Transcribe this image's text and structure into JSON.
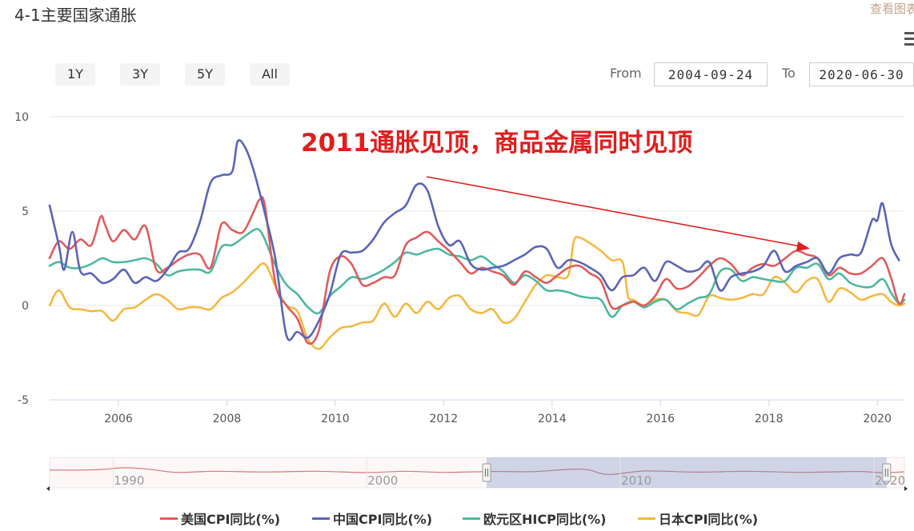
{
  "header": {
    "title": "4-1主要国家通胀",
    "view_link": "查看图表"
  },
  "range_selector": {
    "buttons": [
      "1Y",
      "3Y",
      "5Y",
      "All"
    ],
    "from_label": "From",
    "from_value": "2004-09-24",
    "to_label": "To",
    "to_value": "2020-06-30"
  },
  "icons": {
    "menu": "hamburger-menu-icon",
    "handle": "drag-handle-icon"
  },
  "colors": {
    "us": "#e05c5c",
    "cn": "#5b64b8",
    "eu": "#4db8a0",
    "jp": "#f5b942",
    "annotation": "#e01e1e"
  },
  "chart_data": {
    "type": "line",
    "annotation": "2011通胀见顶，商品金属同时见顶",
    "ylim": [
      -5,
      10
    ],
    "yticks": [
      "-5",
      "0",
      "5",
      "10"
    ],
    "xlim": [
      2004.73,
      2020.5
    ],
    "xticks": [
      "2006",
      "2008",
      "2010",
      "2012",
      "2014",
      "2016",
      "2018",
      "2020"
    ],
    "navigator_ticks": [
      "1990",
      "2000",
      "2010",
      "2020"
    ],
    "series": [
      {
        "name": "美国CPI同比(%)",
        "key": "us",
        "x": [
          2004.73,
          2004.9,
          2005.1,
          2005.3,
          2005.5,
          2005.67,
          2005.75,
          2005.9,
          2006.1,
          2006.3,
          2006.5,
          2006.7,
          2006.9,
          2007.1,
          2007.3,
          2007.5,
          2007.7,
          2007.9,
          2008.1,
          2008.3,
          2008.5,
          2008.6,
          2008.7,
          2008.9,
          2009.1,
          2009.3,
          2009.5,
          2009.7,
          2009.9,
          2010.1,
          2010.3,
          2010.5,
          2010.7,
          2010.9,
          2011.1,
          2011.3,
          2011.5,
          2011.7,
          2011.9,
          2012.1,
          2012.3,
          2012.5,
          2012.7,
          2012.9,
          2013.1,
          2013.3,
          2013.5,
          2013.7,
          2013.9,
          2014.1,
          2014.3,
          2014.5,
          2014.7,
          2014.9,
          2015.1,
          2015.3,
          2015.5,
          2015.7,
          2015.9,
          2016.1,
          2016.3,
          2016.5,
          2016.7,
          2016.9,
          2017.1,
          2017.3,
          2017.5,
          2017.7,
          2017.9,
          2018.1,
          2018.3,
          2018.5,
          2018.7,
          2018.9,
          2019.1,
          2019.3,
          2019.5,
          2019.7,
          2019.9,
          2020.1,
          2020.25,
          2020.4,
          2020.5
        ],
        "y": [
          2.5,
          3.4,
          3.0,
          3.5,
          3.2,
          4.7,
          4.3,
          3.4,
          4.0,
          3.5,
          4.2,
          1.9,
          2.0,
          2.4,
          2.7,
          2.7,
          2.0,
          4.3,
          4.0,
          3.9,
          5.0,
          5.6,
          5.3,
          1.1,
          0.0,
          -0.7,
          -2.0,
          -1.3,
          1.8,
          2.6,
          2.2,
          1.1,
          1.2,
          1.5,
          1.6,
          3.2,
          3.6,
          3.9,
          3.4,
          2.9,
          2.3,
          1.7,
          2.0,
          1.8,
          1.6,
          1.1,
          1.8,
          1.5,
          1.2,
          1.6,
          2.0,
          2.1,
          1.7,
          1.3,
          -0.1,
          0.0,
          0.2,
          0.0,
          0.5,
          1.4,
          0.9,
          1.0,
          1.5,
          2.1,
          2.5,
          2.2,
          1.6,
          2.0,
          2.2,
          2.1,
          2.5,
          2.9,
          2.7,
          2.5,
          1.6,
          2.0,
          1.7,
          1.7,
          2.1,
          2.5,
          1.5,
          0.1,
          0.6
        ]
      },
      {
        "name": "中国CPI同比(%)",
        "key": "cn",
        "x": [
          2004.73,
          2004.9,
          2005.0,
          2005.15,
          2005.3,
          2005.5,
          2005.7,
          2005.9,
          2006.1,
          2006.3,
          2006.5,
          2006.7,
          2006.9,
          2007.1,
          2007.3,
          2007.5,
          2007.7,
          2007.9,
          2008.1,
          2008.2,
          2008.35,
          2008.5,
          2008.7,
          2008.9,
          2009.1,
          2009.3,
          2009.5,
          2009.7,
          2009.9,
          2010.1,
          2010.3,
          2010.5,
          2010.7,
          2010.9,
          2011.1,
          2011.3,
          2011.5,
          2011.7,
          2011.9,
          2012.1,
          2012.3,
          2012.5,
          2012.7,
          2012.9,
          2013.1,
          2013.3,
          2013.5,
          2013.7,
          2013.9,
          2014.1,
          2014.3,
          2014.5,
          2014.7,
          2014.9,
          2015.1,
          2015.3,
          2015.5,
          2015.7,
          2015.9,
          2016.1,
          2016.3,
          2016.5,
          2016.7,
          2016.9,
          2017.1,
          2017.3,
          2017.5,
          2017.7,
          2017.9,
          2018.1,
          2018.3,
          2018.5,
          2018.7,
          2018.9,
          2019.1,
          2019.3,
          2019.5,
          2019.7,
          2019.9,
          2020.0,
          2020.1,
          2020.25,
          2020.4
        ],
        "y": [
          5.3,
          3.2,
          1.9,
          3.9,
          1.8,
          1.7,
          1.2,
          1.4,
          1.9,
          1.2,
          1.5,
          1.3,
          1.9,
          2.8,
          3.0,
          4.4,
          6.5,
          6.9,
          7.1,
          8.7,
          8.3,
          7.1,
          4.9,
          2.4,
          -1.6,
          -1.4,
          -1.7,
          -0.8,
          0.6,
          2.7,
          2.8,
          2.9,
          3.5,
          4.4,
          4.9,
          5.3,
          6.4,
          6.1,
          4.2,
          3.2,
          3.4,
          2.2,
          1.9,
          2.0,
          2.1,
          2.4,
          2.7,
          3.1,
          3.0,
          2.0,
          2.4,
          2.3,
          2.0,
          1.6,
          0.8,
          1.5,
          1.6,
          2.0,
          1.3,
          2.3,
          2.1,
          1.8,
          1.9,
          2.3,
          0.8,
          1.5,
          1.7,
          1.8,
          2.1,
          2.9,
          1.8,
          2.1,
          2.3,
          2.5,
          1.7,
          2.5,
          2.7,
          2.8,
          4.5,
          4.5,
          5.4,
          3.3,
          2.4
        ]
      },
      {
        "name": "欧元区HICP同比(%)",
        "key": "eu",
        "x": [
          2004.73,
          2004.9,
          2005.1,
          2005.3,
          2005.5,
          2005.7,
          2005.9,
          2006.1,
          2006.3,
          2006.5,
          2006.7,
          2006.9,
          2007.1,
          2007.3,
          2007.5,
          2007.7,
          2007.9,
          2008.1,
          2008.3,
          2008.5,
          2008.6,
          2008.7,
          2008.9,
          2009.1,
          2009.3,
          2009.5,
          2009.7,
          2009.9,
          2010.1,
          2010.3,
          2010.5,
          2010.7,
          2010.9,
          2011.1,
          2011.3,
          2011.5,
          2011.7,
          2011.9,
          2012.1,
          2012.3,
          2012.5,
          2012.7,
          2012.9,
          2013.1,
          2013.3,
          2013.5,
          2013.7,
          2013.9,
          2014.1,
          2014.3,
          2014.5,
          2014.7,
          2014.9,
          2015.1,
          2015.3,
          2015.5,
          2015.7,
          2015.9,
          2016.1,
          2016.3,
          2016.5,
          2016.7,
          2016.9,
          2017.1,
          2017.3,
          2017.5,
          2017.7,
          2017.9,
          2018.1,
          2018.3,
          2018.5,
          2018.7,
          2018.9,
          2019.1,
          2019.3,
          2019.5,
          2019.7,
          2019.9,
          2020.1,
          2020.25,
          2020.4,
          2020.5
        ],
        "y": [
          2.1,
          2.3,
          2.0,
          2.0,
          2.2,
          2.5,
          2.3,
          2.3,
          2.4,
          2.5,
          2.2,
          1.6,
          1.8,
          1.9,
          1.9,
          1.8,
          3.1,
          3.2,
          3.6,
          4.0,
          4.0,
          3.5,
          2.1,
          1.1,
          0.6,
          -0.1,
          -0.4,
          0.5,
          1.0,
          1.5,
          1.4,
          1.6,
          1.9,
          2.3,
          2.8,
          2.7,
          2.9,
          3.0,
          2.7,
          2.6,
          2.4,
          2.6,
          2.2,
          1.8,
          1.2,
          1.6,
          1.3,
          0.8,
          0.8,
          0.7,
          0.5,
          0.4,
          0.3,
          -0.6,
          0.0,
          0.2,
          -0.1,
          0.2,
          0.3,
          -0.2,
          0.1,
          0.4,
          0.6,
          1.8,
          1.9,
          1.3,
          1.5,
          1.4,
          1.3,
          1.3,
          2.0,
          2.0,
          2.2,
          1.4,
          1.7,
          1.2,
          1.0,
          1.0,
          1.4,
          0.7,
          0.1,
          0.3
        ]
      },
      {
        "name": "日本CPI同比(%)",
        "key": "jp",
        "x": [
          2004.73,
          2004.9,
          2005.1,
          2005.3,
          2005.5,
          2005.7,
          2005.9,
          2006.1,
          2006.3,
          2006.5,
          2006.7,
          2006.9,
          2007.1,
          2007.3,
          2007.5,
          2007.7,
          2007.9,
          2008.1,
          2008.3,
          2008.5,
          2008.7,
          2008.9,
          2009.1,
          2009.3,
          2009.5,
          2009.7,
          2009.9,
          2010.1,
          2010.3,
          2010.5,
          2010.7,
          2010.9,
          2011.1,
          2011.3,
          2011.5,
          2011.7,
          2011.9,
          2012.1,
          2012.3,
          2012.5,
          2012.7,
          2012.9,
          2013.1,
          2013.3,
          2013.5,
          2013.7,
          2013.9,
          2014.1,
          2014.3,
          2014.4,
          2014.5,
          2014.7,
          2014.9,
          2015.1,
          2015.3,
          2015.4,
          2015.5,
          2015.7,
          2015.9,
          2016.1,
          2016.3,
          2016.5,
          2016.7,
          2016.9,
          2017.1,
          2017.3,
          2017.5,
          2017.7,
          2017.9,
          2018.1,
          2018.3,
          2018.5,
          2018.7,
          2018.9,
          2019.1,
          2019.3,
          2019.5,
          2019.7,
          2019.9,
          2020.1,
          2020.25,
          2020.4,
          2020.5
        ],
        "y": [
          0.0,
          0.8,
          -0.1,
          -0.2,
          -0.3,
          -0.3,
          -0.8,
          -0.2,
          -0.1,
          0.3,
          0.6,
          0.3,
          -0.2,
          -0.1,
          -0.1,
          -0.2,
          0.4,
          0.7,
          1.2,
          1.8,
          2.2,
          1.0,
          0.0,
          -0.3,
          -1.8,
          -2.3,
          -1.7,
          -1.2,
          -1.1,
          -0.9,
          -0.8,
          0.1,
          -0.6,
          0.1,
          -0.4,
          0.2,
          -0.2,
          0.4,
          0.5,
          -0.2,
          -0.4,
          -0.2,
          -0.9,
          -0.7,
          0.2,
          1.1,
          1.6,
          1.5,
          1.6,
          3.4,
          3.6,
          3.3,
          2.9,
          2.4,
          2.3,
          0.5,
          0.3,
          0.0,
          0.3,
          0.3,
          -0.3,
          -0.4,
          -0.5,
          0.5,
          0.4,
          0.3,
          0.4,
          0.6,
          0.6,
          1.5,
          1.2,
          0.7,
          1.3,
          1.4,
          0.2,
          0.9,
          0.7,
          0.3,
          0.5,
          0.6,
          0.2,
          0.0,
          0.1
        ]
      }
    ]
  }
}
